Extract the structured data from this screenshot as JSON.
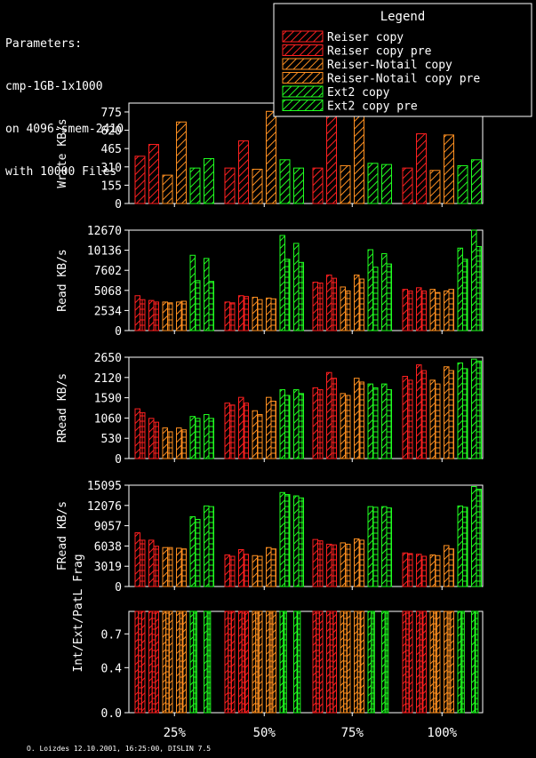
{
  "parameters": {
    "lines": [
      "Parameters:",
      "cmp-1GB-1x1000",
      "on 4096-smem-2410",
      "with 10000 Files"
    ]
  },
  "legend": {
    "title": "Legend",
    "entries": [
      {
        "label": "Reiser copy",
        "color": "#ff2020"
      },
      {
        "label": "Reiser copy pre",
        "color": "#ff2020"
      },
      {
        "label": "Reiser-Notail copy",
        "color": "#ff9020"
      },
      {
        "label": "Reiser-Notail copy pre",
        "color": "#ff9020"
      },
      {
        "label": "Ext2 copy",
        "color": "#20ff20"
      },
      {
        "label": "Ext2 copy pre",
        "color": "#20ff20"
      }
    ]
  },
  "footer": "O. Loizdes 12.10.2001, 16:25:00, DISLIN 7.5",
  "chart_data": [
    {
      "type": "bar",
      "ylabel": "Write KB/s",
      "ylim": [
        0,
        850
      ],
      "yticks": [
        "0",
        "155",
        "310",
        "465",
        "620",
        "775"
      ],
      "ytick_values": [
        0,
        155,
        310,
        465,
        620,
        775
      ],
      "categories": [
        "25%",
        "50%",
        "75%",
        "100%"
      ],
      "groups": [
        [
          [
            400
          ],
          [
            500
          ],
          [
            240
          ],
          [
            690
          ],
          [
            300
          ],
          [
            380
          ]
        ],
        [
          [
            300
          ],
          [
            530
          ],
          [
            290
          ],
          [
            780
          ],
          [
            370
          ],
          [
            300
          ]
        ],
        [
          [
            300
          ],
          [
            740
          ],
          [
            320
          ],
          [
            740
          ],
          [
            340
          ],
          [
            330
          ]
        ],
        [
          [
            300
          ],
          [
            590
          ],
          [
            280
          ],
          [
            580
          ],
          [
            320
          ],
          [
            370
          ]
        ]
      ]
    },
    {
      "type": "bar",
      "ylabel": "Read KB/s",
      "ylim": [
        0,
        12670
      ],
      "yticks": [
        "0",
        "2534",
        "5068",
        "7602",
        "10136",
        "12670"
      ],
      "ytick_values": [
        0,
        2534,
        5068,
        7602,
        10136,
        12670
      ],
      "categories": [
        "25%",
        "50%",
        "75%",
        "100%"
      ],
      "groups": [
        [
          [
            4400,
            3900
          ],
          [
            3800,
            3600
          ],
          [
            3600,
            3500
          ],
          [
            3600,
            3700
          ],
          [
            9500,
            6300
          ],
          [
            9100,
            6200
          ]
        ],
        [
          [
            3600,
            3500
          ],
          [
            4400,
            4300
          ],
          [
            4200,
            3900
          ],
          [
            4100,
            4000
          ],
          [
            12000,
            9000
          ],
          [
            11000,
            8600
          ]
        ],
        [
          [
            6100,
            6000
          ],
          [
            7000,
            6600
          ],
          [
            5500,
            5000
          ],
          [
            7000,
            6500
          ],
          [
            10200,
            8000
          ],
          [
            9700,
            8400
          ]
        ],
        [
          [
            5200,
            5000
          ],
          [
            5400,
            5000
          ],
          [
            5200,
            4800
          ],
          [
            5000,
            5200
          ],
          [
            10400,
            9000
          ],
          [
            12700,
            10600
          ]
        ]
      ]
    },
    {
      "type": "bar",
      "ylabel": "RRead KB/s",
      "ylim": [
        0,
        2650
      ],
      "yticks": [
        "0",
        "530",
        "1060",
        "1590",
        "2120",
        "2650"
      ],
      "ytick_values": [
        0,
        530,
        1060,
        1590,
        2120,
        2650
      ],
      "categories": [
        "25%",
        "50%",
        "75%",
        "100%"
      ],
      "groups": [
        [
          [
            1300,
            1200
          ],
          [
            1050,
            950
          ],
          [
            800,
            700
          ],
          [
            800,
            750
          ],
          [
            1100,
            1050
          ],
          [
            1150,
            1050
          ]
        ],
        [
          [
            1450,
            1400
          ],
          [
            1600,
            1450
          ],
          [
            1250,
            1150
          ],
          [
            1600,
            1500
          ],
          [
            1800,
            1650
          ],
          [
            1800,
            1700
          ]
        ],
        [
          [
            1850,
            1800
          ],
          [
            2250,
            2100
          ],
          [
            1700,
            1650
          ],
          [
            2100,
            2000
          ],
          [
            1950,
            1850
          ],
          [
            1950,
            1800
          ]
        ],
        [
          [
            2150,
            2050
          ],
          [
            2450,
            2300
          ],
          [
            2050,
            1950
          ],
          [
            2400,
            2300
          ],
          [
            2500,
            2350
          ],
          [
            2600,
            2550
          ]
        ]
      ]
    },
    {
      "type": "bar",
      "ylabel": "FRead KB/s",
      "ylim": [
        0,
        15095
      ],
      "yticks": [
        "0",
        "3019",
        "6038",
        "9057",
        "12076",
        "15095"
      ],
      "ytick_values": [
        0,
        3019,
        6038,
        9057,
        12076,
        15095
      ],
      "categories": [
        "25%",
        "50%",
        "75%",
        "100%"
      ],
      "groups": [
        [
          [
            8000,
            6900
          ],
          [
            6900,
            6000
          ],
          [
            5800,
            5800
          ],
          [
            5700,
            5600
          ],
          [
            10400,
            10000
          ],
          [
            12000,
            11900
          ]
        ],
        [
          [
            4700,
            4500
          ],
          [
            5500,
            4800
          ],
          [
            4600,
            4500
          ],
          [
            5800,
            5600
          ],
          [
            14000,
            13700
          ],
          [
            13500,
            13200
          ]
        ],
        [
          [
            7000,
            6800
          ],
          [
            6300,
            6200
          ],
          [
            6500,
            6300
          ],
          [
            7100,
            6900
          ],
          [
            11900,
            11800
          ],
          [
            11900,
            11700
          ]
        ],
        [
          [
            5000,
            4900
          ],
          [
            4800,
            4500
          ],
          [
            4700,
            4600
          ],
          [
            6100,
            5600
          ],
          [
            12000,
            11800
          ],
          [
            14900,
            14500
          ]
        ]
      ]
    },
    {
      "type": "bar",
      "ylabel": "Int/Ext/PatL Frag",
      "ylim": [
        0,
        0.9
      ],
      "yticks": [
        "0.0",
        "0.4",
        "0.7"
      ],
      "ytick_values": [
        0,
        0.4,
        0.7
      ],
      "categories": [
        "25%",
        "50%",
        "75%",
        "100%"
      ],
      "groups": [
        [
          [
            0.9,
            0.9,
            0.9
          ],
          [
            0.9,
            0.9,
            0.9
          ],
          [
            0.9,
            0.9,
            0.9
          ],
          [
            0.9,
            0.9,
            0.9
          ],
          [
            0.9,
            0.9,
            0.0
          ],
          [
            0.9,
            0.9,
            0.0
          ]
        ],
        [
          [
            0.9,
            0.9,
            0.9
          ],
          [
            0.9,
            0.9,
            0.9
          ],
          [
            0.9,
            0.9,
            0.9
          ],
          [
            0.9,
            0.9,
            0.9
          ],
          [
            0.9,
            0.9,
            0.0
          ],
          [
            0.9,
            0.9,
            0.0
          ]
        ],
        [
          [
            0.9,
            0.9,
            0.9
          ],
          [
            0.9,
            0.9,
            0.9
          ],
          [
            0.9,
            0.9,
            0.9
          ],
          [
            0.9,
            0.9,
            0.9
          ],
          [
            0.9,
            0.9,
            0.0
          ],
          [
            0.9,
            0.9,
            0.0
          ]
        ],
        [
          [
            0.9,
            0.9,
            0.9
          ],
          [
            0.9,
            0.9,
            0.9
          ],
          [
            0.9,
            0.9,
            0.9
          ],
          [
            0.9,
            0.9,
            0.9
          ],
          [
            0.9,
            0.9,
            0.0
          ],
          [
            0.9,
            0.9,
            0.0
          ]
        ]
      ]
    }
  ]
}
